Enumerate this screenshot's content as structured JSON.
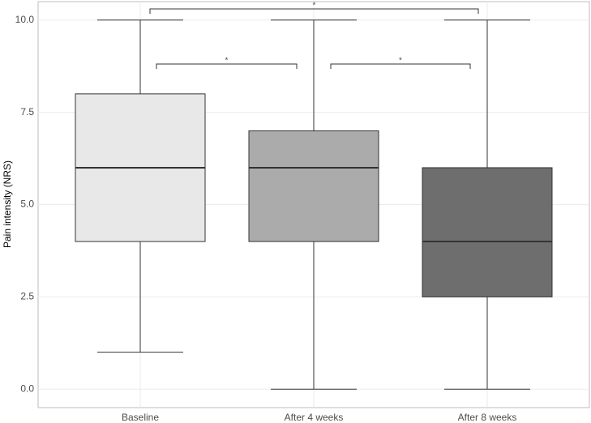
{
  "chart_data": {
    "type": "box",
    "y_label": "Pain intensity (NRS)",
    "categories": [
      "Baseline",
      "After 4 weeks",
      "After 8 weeks"
    ],
    "boxes": [
      {
        "min": 1,
        "q1": 4,
        "median": 6,
        "q3": 8,
        "max": 10,
        "color": "#e8e8e8"
      },
      {
        "min": 0,
        "q1": 4,
        "median": 6,
        "q3": 7,
        "max": 10,
        "color": "#ababab"
      },
      {
        "min": 0,
        "q1": 2.5,
        "median": 4,
        "q3": 6,
        "max": 10,
        "color": "#6e6e6e"
      }
    ],
    "ylim": [
      -0.5,
      10.5
    ],
    "yticks": [
      {
        "value": 0,
        "label": "0.0"
      },
      2.5,
      {
        "value": 5,
        "label": "5.0"
      },
      7.5,
      {
        "value": 10,
        "label": "10.0"
      }
    ],
    "grid": true,
    "annotations": [
      "*",
      "*",
      "*"
    ]
  }
}
